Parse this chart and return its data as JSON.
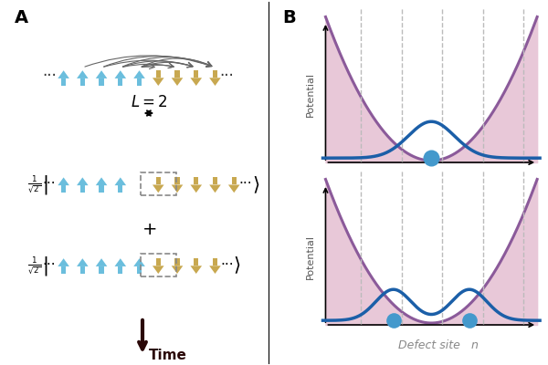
{
  "panel_A_label": "A",
  "panel_B_label": "B",
  "arrow_up_color": "#6BBEDD",
  "arrow_down_color": "#C8A850",
  "arc_color": "#666666",
  "potential_fill_color": "#E8C8D8",
  "potential_line_color": "#8B5A9A",
  "wave_color": "#1B5FA8",
  "ball_color": "#4499CC",
  "dashed_line_color": "#BBBBBB",
  "time_arrow_color": "#2A0808",
  "axis_color": "#333333",
  "defect_site_label": "Defect site ",
  "defect_site_n": "n",
  "potential_label": "Potential",
  "time_label": "Time",
  "background_color": "#FFFFFF",
  "row1_n_up": 5,
  "row1_n_dn": 4,
  "row2_n_up": 4,
  "row2_n_dn": 5,
  "row3_n_up": 5,
  "row3_n_dn": 4
}
